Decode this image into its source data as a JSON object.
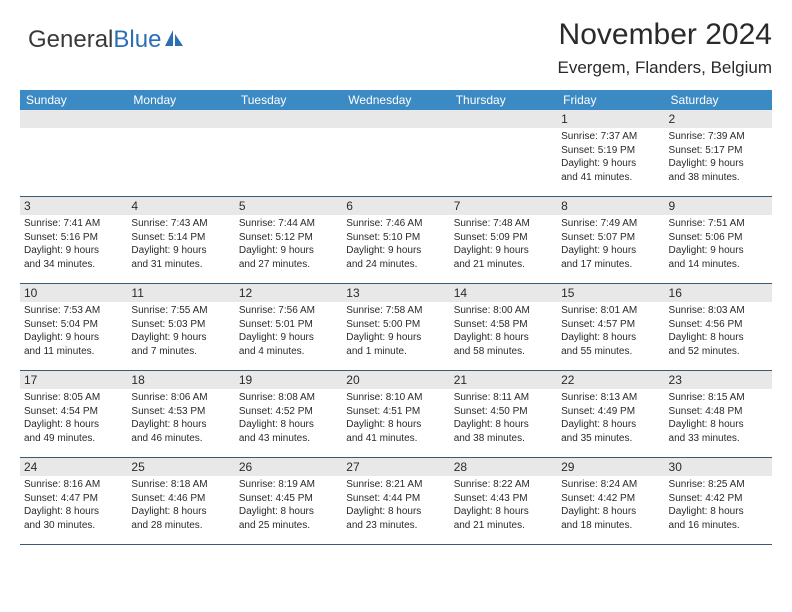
{
  "logo": {
    "word1": "General",
    "word2": "Blue"
  },
  "title": "November 2024",
  "location": "Evergem, Flanders, Belgium",
  "colors": {
    "header_bg": "#3b8ac4",
    "header_text": "#ffffff",
    "daynum_bg": "#e8e8e8",
    "border": "#3b5a7a",
    "text": "#2a2a2a",
    "logo_gray": "#3a3a3a",
    "logo_blue": "#2d6fb5"
  },
  "day_headers": [
    "Sunday",
    "Monday",
    "Tuesday",
    "Wednesday",
    "Thursday",
    "Friday",
    "Saturday"
  ],
  "weeks": [
    [
      null,
      null,
      null,
      null,
      null,
      {
        "n": "1",
        "sr": "Sunrise: 7:37 AM",
        "ss": "Sunset: 5:19 PM",
        "d1": "Daylight: 9 hours",
        "d2": "and 41 minutes."
      },
      {
        "n": "2",
        "sr": "Sunrise: 7:39 AM",
        "ss": "Sunset: 5:17 PM",
        "d1": "Daylight: 9 hours",
        "d2": "and 38 minutes."
      }
    ],
    [
      {
        "n": "3",
        "sr": "Sunrise: 7:41 AM",
        "ss": "Sunset: 5:16 PM",
        "d1": "Daylight: 9 hours",
        "d2": "and 34 minutes."
      },
      {
        "n": "4",
        "sr": "Sunrise: 7:43 AM",
        "ss": "Sunset: 5:14 PM",
        "d1": "Daylight: 9 hours",
        "d2": "and 31 minutes."
      },
      {
        "n": "5",
        "sr": "Sunrise: 7:44 AM",
        "ss": "Sunset: 5:12 PM",
        "d1": "Daylight: 9 hours",
        "d2": "and 27 minutes."
      },
      {
        "n": "6",
        "sr": "Sunrise: 7:46 AM",
        "ss": "Sunset: 5:10 PM",
        "d1": "Daylight: 9 hours",
        "d2": "and 24 minutes."
      },
      {
        "n": "7",
        "sr": "Sunrise: 7:48 AM",
        "ss": "Sunset: 5:09 PM",
        "d1": "Daylight: 9 hours",
        "d2": "and 21 minutes."
      },
      {
        "n": "8",
        "sr": "Sunrise: 7:49 AM",
        "ss": "Sunset: 5:07 PM",
        "d1": "Daylight: 9 hours",
        "d2": "and 17 minutes."
      },
      {
        "n": "9",
        "sr": "Sunrise: 7:51 AM",
        "ss": "Sunset: 5:06 PM",
        "d1": "Daylight: 9 hours",
        "d2": "and 14 minutes."
      }
    ],
    [
      {
        "n": "10",
        "sr": "Sunrise: 7:53 AM",
        "ss": "Sunset: 5:04 PM",
        "d1": "Daylight: 9 hours",
        "d2": "and 11 minutes."
      },
      {
        "n": "11",
        "sr": "Sunrise: 7:55 AM",
        "ss": "Sunset: 5:03 PM",
        "d1": "Daylight: 9 hours",
        "d2": "and 7 minutes."
      },
      {
        "n": "12",
        "sr": "Sunrise: 7:56 AM",
        "ss": "Sunset: 5:01 PM",
        "d1": "Daylight: 9 hours",
        "d2": "and 4 minutes."
      },
      {
        "n": "13",
        "sr": "Sunrise: 7:58 AM",
        "ss": "Sunset: 5:00 PM",
        "d1": "Daylight: 9 hours",
        "d2": "and 1 minute."
      },
      {
        "n": "14",
        "sr": "Sunrise: 8:00 AM",
        "ss": "Sunset: 4:58 PM",
        "d1": "Daylight: 8 hours",
        "d2": "and 58 minutes."
      },
      {
        "n": "15",
        "sr": "Sunrise: 8:01 AM",
        "ss": "Sunset: 4:57 PM",
        "d1": "Daylight: 8 hours",
        "d2": "and 55 minutes."
      },
      {
        "n": "16",
        "sr": "Sunrise: 8:03 AM",
        "ss": "Sunset: 4:56 PM",
        "d1": "Daylight: 8 hours",
        "d2": "and 52 minutes."
      }
    ],
    [
      {
        "n": "17",
        "sr": "Sunrise: 8:05 AM",
        "ss": "Sunset: 4:54 PM",
        "d1": "Daylight: 8 hours",
        "d2": "and 49 minutes."
      },
      {
        "n": "18",
        "sr": "Sunrise: 8:06 AM",
        "ss": "Sunset: 4:53 PM",
        "d1": "Daylight: 8 hours",
        "d2": "and 46 minutes."
      },
      {
        "n": "19",
        "sr": "Sunrise: 8:08 AM",
        "ss": "Sunset: 4:52 PM",
        "d1": "Daylight: 8 hours",
        "d2": "and 43 minutes."
      },
      {
        "n": "20",
        "sr": "Sunrise: 8:10 AM",
        "ss": "Sunset: 4:51 PM",
        "d1": "Daylight: 8 hours",
        "d2": "and 41 minutes."
      },
      {
        "n": "21",
        "sr": "Sunrise: 8:11 AM",
        "ss": "Sunset: 4:50 PM",
        "d1": "Daylight: 8 hours",
        "d2": "and 38 minutes."
      },
      {
        "n": "22",
        "sr": "Sunrise: 8:13 AM",
        "ss": "Sunset: 4:49 PM",
        "d1": "Daylight: 8 hours",
        "d2": "and 35 minutes."
      },
      {
        "n": "23",
        "sr": "Sunrise: 8:15 AM",
        "ss": "Sunset: 4:48 PM",
        "d1": "Daylight: 8 hours",
        "d2": "and 33 minutes."
      }
    ],
    [
      {
        "n": "24",
        "sr": "Sunrise: 8:16 AM",
        "ss": "Sunset: 4:47 PM",
        "d1": "Daylight: 8 hours",
        "d2": "and 30 minutes."
      },
      {
        "n": "25",
        "sr": "Sunrise: 8:18 AM",
        "ss": "Sunset: 4:46 PM",
        "d1": "Daylight: 8 hours",
        "d2": "and 28 minutes."
      },
      {
        "n": "26",
        "sr": "Sunrise: 8:19 AM",
        "ss": "Sunset: 4:45 PM",
        "d1": "Daylight: 8 hours",
        "d2": "and 25 minutes."
      },
      {
        "n": "27",
        "sr": "Sunrise: 8:21 AM",
        "ss": "Sunset: 4:44 PM",
        "d1": "Daylight: 8 hours",
        "d2": "and 23 minutes."
      },
      {
        "n": "28",
        "sr": "Sunrise: 8:22 AM",
        "ss": "Sunset: 4:43 PM",
        "d1": "Daylight: 8 hours",
        "d2": "and 21 minutes."
      },
      {
        "n": "29",
        "sr": "Sunrise: 8:24 AM",
        "ss": "Sunset: 4:42 PM",
        "d1": "Daylight: 8 hours",
        "d2": "and 18 minutes."
      },
      {
        "n": "30",
        "sr": "Sunrise: 8:25 AM",
        "ss": "Sunset: 4:42 PM",
        "d1": "Daylight: 8 hours",
        "d2": "and 16 minutes."
      }
    ]
  ]
}
